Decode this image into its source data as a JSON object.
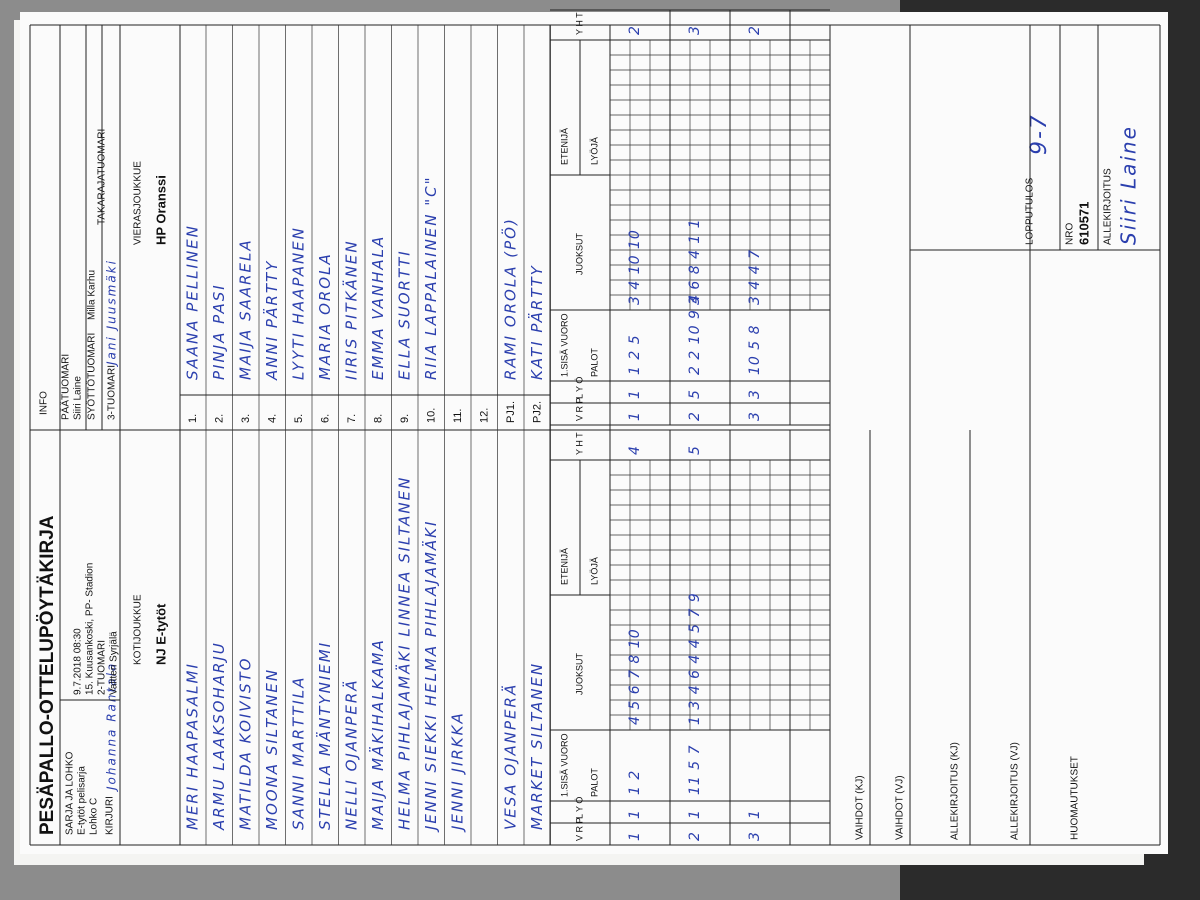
{
  "header": {
    "title": "PESÄPALLO-OTTELUPÖYTÄKIRJA",
    "info": "INFO",
    "series_label": "SARJA JA LOHKO",
    "series": "E-tytöt pelisarja",
    "group": "Lohko C",
    "datetime": "9.7.2018 08:30",
    "venue": "15. Kuusankoski, PP- Stadion",
    "scorer_label": "KIRJURI",
    "scorer": "Johanna Rantala",
    "umpire2_label": "2-TUOMARI",
    "umpire2": "Valtteri Syrjälä",
    "chief_label": "PÄÄTUOMARI",
    "chief": "Siiri Laine",
    "pitch_label": "SYÖTTÖTUOMARI",
    "pitch": "Milla Karhu",
    "umpire3_label": "3-TUOMARI",
    "umpire3": "Jani Juusmäki",
    "back_label": "TAKARAJATUOMARI"
  },
  "home": {
    "label": "KOTIJOUKKUE",
    "name": "NJ E-tytöt",
    "players": [
      "MERI HAAPASALMI",
      "ARMU LAAKSOHARJU",
      "MATILDA KOIVISTO",
      "MOONA SILTANEN",
      "SANNI MARTTILA",
      "STELLA MÄNTYNIEMI",
      "NELLI OJANPERÄ",
      "MAIJA MÄKIHALKAMA",
      "HELMA PIHLAJAMÄKI   LINNEA SILTANEN",
      "JENNI SIEKKI   HELMA PIHLAJAMÄKI",
      "JENNI JIRKKA",
      "",
      "VESA OJANPERÄ",
      "MARKET SILTANEN"
    ],
    "innings": [
      [
        "1",
        "1",
        "1 2",
        "4 5 6   7 8 10",
        "4"
      ],
      [
        "2",
        "1",
        "11 5 7",
        "1 3 4 6   4 4 5 7 9",
        "5"
      ],
      [
        "3",
        "1",
        "",
        "",
        ""
      ]
    ]
  },
  "away": {
    "label": "VIERASJOUKKUE",
    "name": "HP Oranssi",
    "players": [
      "SAANA PELLINEN",
      "PINJA PASI",
      "MAIJA SAARELA",
      "ANNI PÄRTTY",
      "LYYTI HAAPANEN",
      "MARIA OROLA",
      "IIRIS PITKÄNEN",
      "EMMA VANHALA",
      "ELLA SUORTTI",
      "RIIA LAPPALAINEN  \"C\"",
      "",
      "",
      "RAMI OROLA (PÖ)",
      "KATI PÄRTTY"
    ],
    "innings": [
      [
        "1",
        "1",
        "1 2 5",
        "3 4   10 10",
        "2"
      ],
      [
        "2",
        "5",
        "2 2 10 9 4",
        "3 6 8   4 1 1",
        "3"
      ],
      [
        "3",
        "3",
        "10 5 8",
        "3 4   4 7",
        "2"
      ]
    ]
  },
  "numbers": [
    "1.",
    "2.",
    "3.",
    "4.",
    "5.",
    "6.",
    "7.",
    "8.",
    "9.",
    "10.",
    "11.",
    "12.",
    "PJ1.",
    "PJ2."
  ],
  "score_headers": [
    "V R P",
    "L Y Ö",
    "1.SISÄ VUORO",
    "PALOT",
    "JUOKSUT",
    "ETENIJÄ",
    "LYÖJÄ",
    "Y H T"
  ],
  "footer": {
    "result_label": "LOPPUTULOS",
    "result": "9-7",
    "nro_label": "NRO",
    "nro": "610571",
    "sign_label": "ALLEKIRJOITUS",
    "sign": "Siiri Laine",
    "subs_home": "VAIHDOT (KJ)",
    "subs_away": "VAIHDOT (VJ)",
    "sign_home": "ALLEKIRJOITUS (KJ)",
    "sign_away": "ALLEKIRJOITUS (VJ)",
    "remarks": "HUOMAUTUKSET"
  }
}
